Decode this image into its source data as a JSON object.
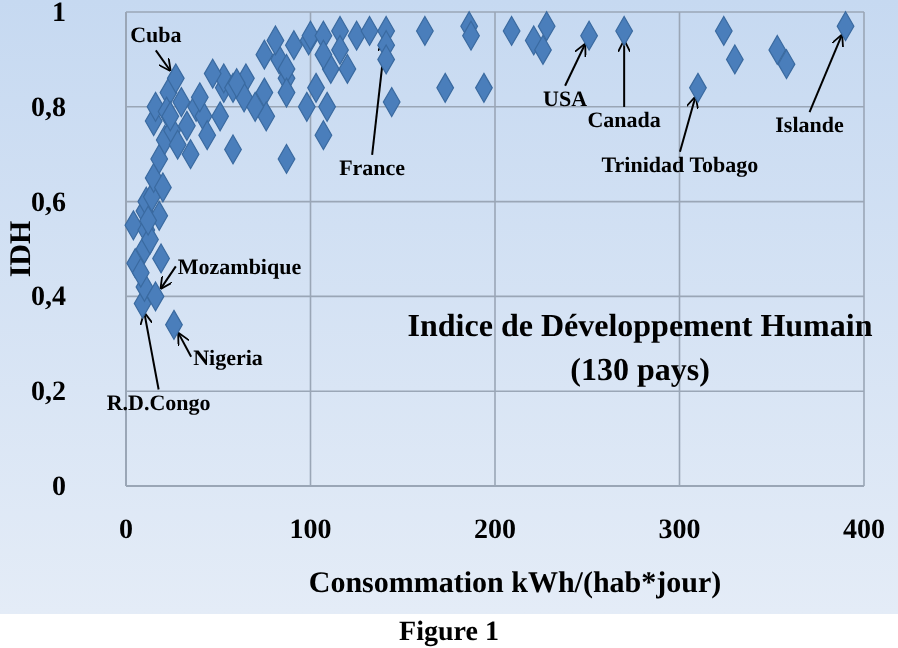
{
  "chart_data": {
    "type": "scatter",
    "title": "Indice de Développement Humain",
    "subtitle": "(130 pays)",
    "xlabel": "Consommation  kWh/(hab*jour)",
    "ylabel": "IDH",
    "marker": "diamond",
    "grid": true,
    "xlim": [
      0,
      400
    ],
    "xticks": [
      0,
      100,
      200,
      300,
      400
    ],
    "ylim": [
      0,
      1
    ],
    "yticks": [
      0,
      {
        "value": 0.2,
        "label": "0,2"
      },
      {
        "value": 0.4,
        "label": "0,4"
      },
      {
        "value": 0.6,
        "label": "0,6"
      },
      {
        "value": 0.8,
        "label": "0,8"
      },
      1
    ],
    "series": [
      {
        "color": "#4a7ebb",
        "x": [
          9,
          10,
          16,
          26,
          5,
          19,
          10,
          4,
          11,
          18,
          10,
          11,
          14,
          15,
          18,
          21,
          15,
          25,
          16,
          23,
          27,
          33,
          35,
          38,
          42,
          51,
          40,
          53,
          58,
          53,
          58,
          65,
          64,
          75,
          76,
          75,
          83,
          81,
          91,
          87,
          87,
          98,
          99,
          87,
          100,
          107,
          116,
          125,
          132,
          141,
          141,
          141,
          162,
          186,
          187,
          209,
          221,
          226,
          228,
          107,
          109,
          144,
          173,
          194,
          103,
          111,
          120,
          107,
          116,
          87,
          251,
          270,
          324,
          330,
          353,
          358,
          310,
          390,
          8,
          13,
          20,
          22,
          30,
          44,
          47,
          60,
          70,
          28,
          12,
          24
        ],
        "values": [
          0.385,
          0.42,
          0.4,
          0.34,
          0.47,
          0.48,
          0.5,
          0.55,
          0.54,
          0.57,
          0.58,
          0.6,
          0.61,
          0.65,
          0.69,
          0.73,
          0.77,
          0.75,
          0.8,
          0.83,
          0.86,
          0.76,
          0.7,
          0.8,
          0.78,
          0.78,
          0.82,
          0.84,
          0.71,
          0.86,
          0.84,
          0.86,
          0.82,
          0.83,
          0.78,
          0.91,
          0.9,
          0.94,
          0.93,
          0.86,
          0.69,
          0.8,
          0.94,
          0.88,
          0.95,
          0.95,
          0.96,
          0.95,
          0.96,
          0.96,
          0.93,
          0.9,
          0.96,
          0.97,
          0.95,
          0.96,
          0.94,
          0.92,
          0.97,
          0.74,
          0.8,
          0.81,
          0.84,
          0.84,
          0.84,
          0.88,
          0.88,
          0.91,
          0.92,
          0.83,
          0.95,
          0.96,
          0.96,
          0.9,
          0.92,
          0.89,
          0.84,
          0.97,
          0.45,
          0.52,
          0.63,
          0.79,
          0.81,
          0.74,
          0.87,
          0.85,
          0.8,
          0.72,
          0.56,
          0.78
        ]
      }
    ],
    "annotations": [
      {
        "text": "Cuba",
        "x": 27,
        "y": 0.86
      },
      {
        "text": "France",
        "x": 141,
        "y": 0.96
      },
      {
        "text": "USA",
        "x": 251,
        "y": 0.95
      },
      {
        "text": "Canada",
        "x": 270,
        "y": 0.96
      },
      {
        "text": "Trinidad Tobago",
        "x": 310,
        "y": 0.84
      },
      {
        "text": "Islande",
        "x": 390,
        "y": 0.97
      },
      {
        "text": "Mozambique",
        "x": 16,
        "y": 0.4
      },
      {
        "text": "Nigeria",
        "x": 26,
        "y": 0.34
      },
      {
        "text": "R.D.Congo",
        "x": 9,
        "y": 0.385
      },
      "Figure 1"
    ]
  }
}
